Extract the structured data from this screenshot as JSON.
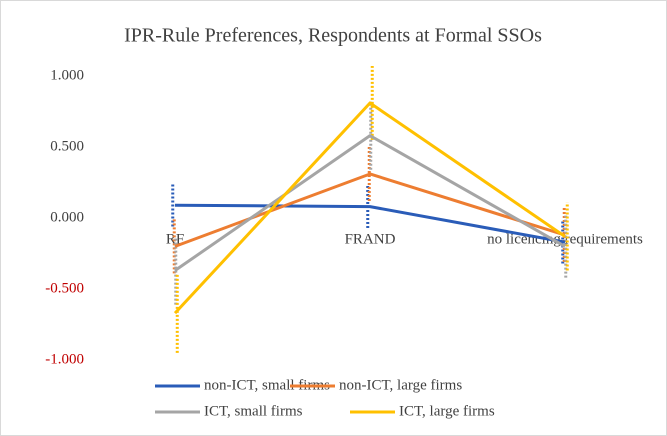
{
  "chart_data": {
    "type": "line",
    "title": "IPR-Rule Preferences, Respondents at Formal SSOs",
    "categories": [
      "RF",
      "FRAND",
      "no licencing requirements"
    ],
    "series": [
      {
        "name": "non-ICT, small firms",
        "color": "#2a5cb8",
        "values": [
          0.09,
          0.08,
          -0.17
        ],
        "errors": [
          0.15,
          0.15,
          0.15
        ]
      },
      {
        "name": "non-ICT, large firms",
        "color": "#ed7d31",
        "values": [
          -0.2,
          0.31,
          -0.12
        ],
        "errors": [
          0.19,
          0.19,
          0.19
        ]
      },
      {
        "name": "ICT, small firms",
        "color": "#a5a5a5",
        "values": [
          -0.37,
          0.58,
          -0.2
        ],
        "errors": [
          0.24,
          0.24,
          0.22
        ]
      },
      {
        "name": "ICT, large firms",
        "color": "#ffc000",
        "values": [
          -0.67,
          0.81,
          -0.13
        ],
        "errors": [
          0.28,
          0.26,
          0.24
        ]
      }
    ],
    "ylim": [
      -1,
      1
    ],
    "yticks": [
      {
        "value": -1,
        "label": "-1.000"
      },
      {
        "value": -0.5,
        "label": "-0.500"
      },
      {
        "value": 0,
        "label": "0.000"
      },
      {
        "value": 0.5,
        "label": "0.500"
      },
      {
        "value": 1,
        "label": "1.000"
      }
    ],
    "negative_tick_color": "#c00000",
    "legend": "bottom"
  }
}
